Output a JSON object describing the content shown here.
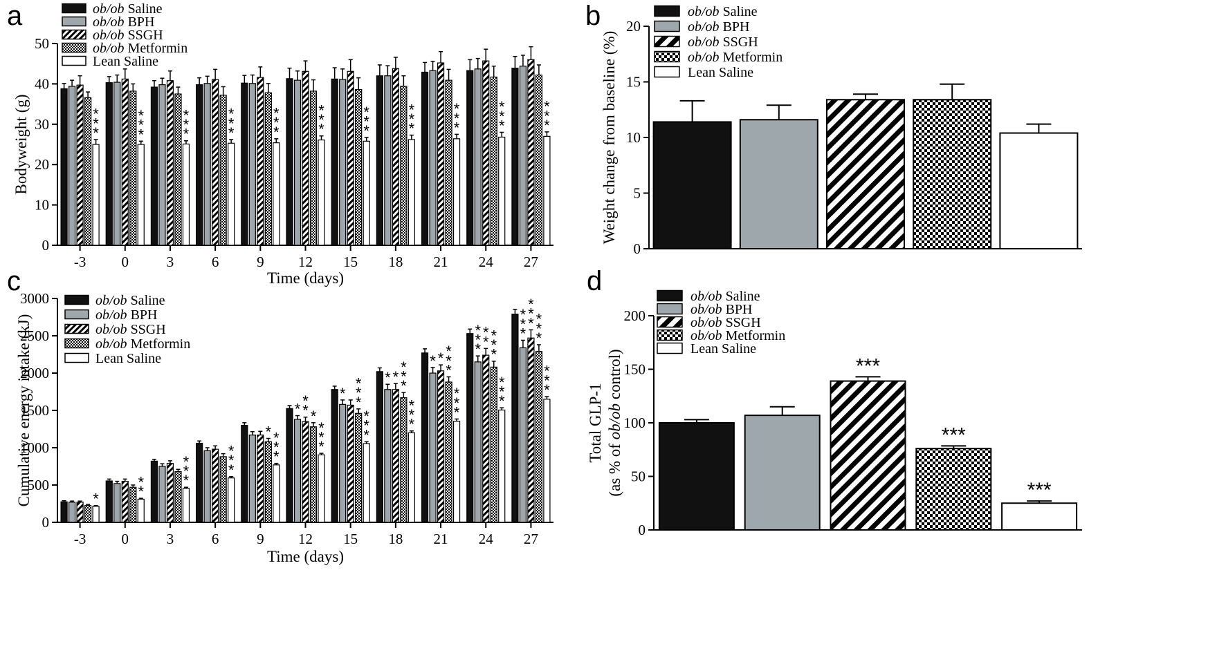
{
  "figure_letters": [
    "a",
    "b",
    "c",
    "d"
  ],
  "legend_style": {
    "ob_ob Saline": "#111111",
    "ob_ob BPH": "#9ea7ab",
    "ob_ob SSGH": "diagonal-stripes",
    "ob_ob Metformin": "checker",
    "Lean Saline": "#ffffff"
  },
  "chart_data": [
    {
      "panel": "a",
      "type": "bar",
      "title": "",
      "xlabel": "Time (days)",
      "ylabel": "Bodyweight (g)",
      "ylim": [
        0,
        50
      ],
      "yticks": [
        0,
        10,
        20,
        30,
        40,
        50
      ],
      "categories": [
        "-3",
        "0",
        "3",
        "6",
        "9",
        "12",
        "15",
        "18",
        "21",
        "24",
        "27"
      ],
      "legend_position": "top-left",
      "series": [
        {
          "name": "ob/ob Saline",
          "italic_prefix": "ob/ob",
          "label_rest": "Saline",
          "style": "black",
          "values": [
            38.8,
            40.3,
            39.2,
            39.8,
            40.2,
            41.3,
            41.2,
            42.0,
            42.9,
            43.3,
            43.9
          ],
          "errors": [
            1.3,
            1.5,
            1.6,
            1.7,
            1.9,
            2.6,
            2.8,
            2.7,
            2.4,
            2.7,
            2.9
          ],
          "sig": [
            "",
            "",
            "",
            "",
            "",
            "",
            "",
            "",
            "",
            "",
            ""
          ]
        },
        {
          "name": "ob/ob BPH",
          "italic_prefix": "ob/ob",
          "label_rest": "BPH",
          "style": "gray",
          "values": [
            39.4,
            40.4,
            39.8,
            40.1,
            40.1,
            40.9,
            41.1,
            42.0,
            43.3,
            43.7,
            44.4
          ],
          "errors": [
            1.5,
            1.8,
            1.6,
            1.8,
            2.1,
            2.3,
            2.6,
            2.5,
            2.3,
            2.6,
            2.7
          ],
          "sig": [
            "",
            "",
            "",
            "",
            "",
            "",
            "",
            "",
            "",
            "",
            ""
          ]
        },
        {
          "name": "ob/ob SSGH",
          "italic_prefix": "ob/ob",
          "label_rest": "SSGH",
          "style": "stripes",
          "values": [
            39.7,
            41.2,
            40.8,
            41.1,
            41.6,
            43.1,
            43.1,
            43.8,
            45.2,
            45.7,
            46.0
          ],
          "errors": [
            2.3,
            2.5,
            2.4,
            2.5,
            2.6,
            2.6,
            2.9,
            2.8,
            2.8,
            2.9,
            3.2
          ],
          "sig": [
            "",
            "",
            "",
            "",
            "",
            "",
            "",
            "",
            "",
            "",
            ""
          ]
        },
        {
          "name": "ob/ob Metformin",
          "italic_prefix": "ob/ob",
          "label_rest": "Metformin",
          "style": "checker",
          "values": [
            36.6,
            38.2,
            37.5,
            37.2,
            37.8,
            38.2,
            38.6,
            39.4,
            40.9,
            41.7,
            42.2
          ],
          "errors": [
            1.4,
            1.8,
            1.7,
            2.1,
            2.3,
            2.8,
            2.9,
            2.6,
            2.7,
            2.7,
            2.5
          ],
          "sig": [
            "",
            "",
            "",
            "",
            "",
            "",
            "",
            "",
            "",
            "",
            ""
          ]
        },
        {
          "name": "Lean Saline",
          "italic_prefix": "",
          "label_rest": "Lean Saline",
          "style": "white",
          "values": [
            25.0,
            25.0,
            25.1,
            25.3,
            25.4,
            26.1,
            25.8,
            26.2,
            26.4,
            26.8,
            27.0
          ],
          "errors": [
            1.2,
            0.8,
            0.8,
            0.9,
            1.0,
            1.0,
            0.9,
            1.1,
            1.1,
            1.2,
            1.1
          ],
          "sig": [
            "***",
            "***",
            "***",
            "***",
            "***",
            "***",
            "***",
            "***",
            "***",
            "***",
            "***"
          ]
        }
      ]
    },
    {
      "panel": "b",
      "type": "bar",
      "title": "",
      "xlabel": "",
      "ylabel": "Weight change from baseline (%)",
      "ylim": [
        0,
        20
      ],
      "yticks": [
        0,
        5,
        10,
        15,
        20
      ],
      "categories": [
        "ob/ob Saline",
        "ob/ob BPH",
        "ob/ob SSGH",
        "ob/ob Metformin",
        "Lean Saline"
      ],
      "legend_position": "top-left",
      "series": [
        {
          "name": "ob/ob Saline",
          "italic_prefix": "ob/ob",
          "label_rest": "Saline",
          "style": "black",
          "value": 11.4,
          "error": 1.9,
          "sig": ""
        },
        {
          "name": "ob/ob BPH",
          "italic_prefix": "ob/ob",
          "label_rest": "BPH",
          "style": "gray",
          "value": 11.6,
          "error": 1.3,
          "sig": ""
        },
        {
          "name": "ob/ob SSGH",
          "italic_prefix": "ob/ob",
          "label_rest": "SSGH",
          "style": "stripes",
          "value": 13.4,
          "error": 0.5,
          "sig": ""
        },
        {
          "name": "ob/ob Metformin",
          "italic_prefix": "ob/ob",
          "label_rest": "Metformin",
          "style": "checker",
          "value": 13.4,
          "error": 1.4,
          "sig": ""
        },
        {
          "name": "Lean Saline",
          "italic_prefix": "",
          "label_rest": "Lean Saline",
          "style": "white",
          "value": 10.4,
          "error": 0.8,
          "sig": ""
        }
      ]
    },
    {
      "panel": "c",
      "type": "bar",
      "title": "",
      "xlabel": "Time (days)",
      "ylabel": "Cumulative energy intake (kJ)",
      "ylim": [
        0,
        3000
      ],
      "yticks": [
        0,
        500,
        1000,
        1500,
        2000,
        2500,
        3000
      ],
      "categories": [
        "-3",
        "0",
        "3",
        "6",
        "9",
        "12",
        "15",
        "18",
        "21",
        "24",
        "27"
      ],
      "legend_position": "top-left",
      "series": [
        {
          "name": "ob/ob Saline",
          "italic_prefix": "ob/ob",
          "label_rest": "Saline",
          "style": "black",
          "values": [
            275,
            555,
            820,
            1060,
            1300,
            1525,
            1780,
            2020,
            2270,
            2530,
            2790
          ],
          "errors": [
            15,
            25,
            25,
            30,
            35,
            40,
            45,
            50,
            55,
            60,
            65
          ],
          "sig": [
            "",
            "",
            "",
            "",
            "",
            "",
            "",
            "",
            "",
            "",
            ""
          ]
        },
        {
          "name": "ob/ob BPH",
          "italic_prefix": "ob/ob",
          "label_rest": "BPH",
          "style": "gray",
          "values": [
            270,
            520,
            750,
            960,
            1170,
            1380,
            1580,
            1780,
            2000,
            2150,
            2340
          ],
          "errors": [
            15,
            30,
            35,
            40,
            45,
            50,
            60,
            70,
            75,
            80,
            100
          ],
          "sig": [
            "",
            "",
            "",
            "",
            "",
            "*",
            "*",
            "*",
            "*",
            "***",
            "***"
          ]
        },
        {
          "name": "ob/ob SSGH",
          "italic_prefix": "ob/ob",
          "label_rest": "SSGH",
          "style": "stripes",
          "values": [
            270,
            550,
            790,
            980,
            1170,
            1350,
            1570,
            1780,
            2030,
            2240,
            2470
          ],
          "errors": [
            15,
            30,
            35,
            45,
            50,
            60,
            70,
            80,
            80,
            90,
            110
          ],
          "sig": [
            "",
            "",
            "",
            "",
            "",
            "**",
            "",
            "*",
            "*",
            "**",
            "***"
          ]
        },
        {
          "name": "ob/ob Metformin",
          "italic_prefix": "ob/ob",
          "label_rest": "Metformin",
          "style": "checker",
          "values": [
            225,
            470,
            680,
            880,
            1080,
            1280,
            1460,
            1670,
            1880,
            2080,
            2290
          ],
          "errors": [
            15,
            30,
            30,
            40,
            45,
            55,
            60,
            70,
            70,
            80,
            90
          ],
          "sig": [
            "",
            "",
            "",
            "",
            "*",
            "*",
            "***",
            "***",
            "***",
            "***",
            "***"
          ]
        },
        {
          "name": "Lean Saline",
          "italic_prefix": "",
          "label_rest": "Lean Saline",
          "style": "white",
          "values": [
            215,
            310,
            455,
            595,
            770,
            905,
            1055,
            1200,
            1355,
            1505,
            1650
          ],
          "errors": [
            10,
            12,
            15,
            18,
            20,
            20,
            25,
            25,
            30,
            30,
            35
          ],
          "sig": [
            "*",
            "**",
            "***",
            "***",
            "***",
            "***",
            "***",
            "***",
            "***",
            "***",
            "***"
          ]
        }
      ]
    },
    {
      "panel": "d",
      "type": "bar",
      "title": "",
      "xlabel": "",
      "ylabel_line1": "Total GLP-1",
      "ylabel_line2_pre": "(as % of ",
      "ylabel_line2_italic": "ob/ob",
      "ylabel_line2_post": " control)",
      "ylim": [
        0,
        200
      ],
      "yticks": [
        0,
        50,
        100,
        150,
        200
      ],
      "categories": [
        "ob/ob Saline",
        "ob/ob BPH",
        "ob/ob SSGH",
        "ob/ob Metformin",
        "Lean Saline"
      ],
      "legend_position": "top-left",
      "series": [
        {
          "name": "ob/ob Saline",
          "italic_prefix": "ob/ob",
          "label_rest": "Saline",
          "style": "black",
          "value": 100,
          "error": 3,
          "sig": ""
        },
        {
          "name": "ob/ob BPH",
          "italic_prefix": "ob/ob",
          "label_rest": "BPH",
          "style": "gray",
          "value": 107,
          "error": 8,
          "sig": ""
        },
        {
          "name": "ob/ob SSGH",
          "italic_prefix": "ob/ob",
          "label_rest": "SSGH",
          "style": "stripes",
          "value": 139,
          "error": 4,
          "sig": "***"
        },
        {
          "name": "ob/ob Metformin",
          "italic_prefix": "ob/ob",
          "label_rest": "Metformin",
          "style": "checker",
          "value": 76,
          "error": 2.5,
          "sig": "***"
        },
        {
          "name": "Lean Saline",
          "italic_prefix": "",
          "label_rest": "Lean  Saline",
          "style": "white",
          "value": 25,
          "error": 2,
          "sig": "***"
        }
      ]
    }
  ]
}
